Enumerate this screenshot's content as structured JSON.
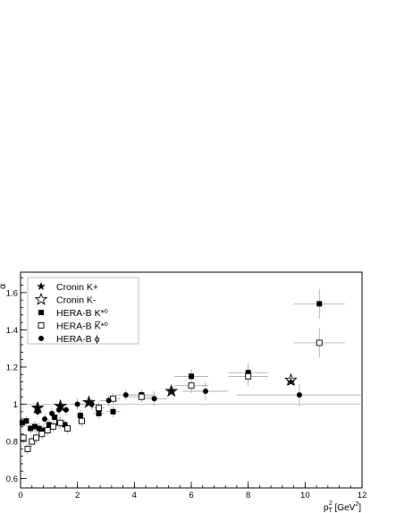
{
  "chart_data": {
    "type": "scatter",
    "xlabel_main": "p",
    "xlabel_sub": "T",
    "xlabel_sup": "2",
    "xlabel_unit": " [GeV",
    "xlabel_unit_sup": "2",
    "xlabel_unit_end": "]",
    "ylabel": "α",
    "xlim": [
      0,
      12
    ],
    "ylim": [
      0.55,
      1.71
    ],
    "xticks": [
      0,
      2,
      4,
      6,
      8,
      10,
      12
    ],
    "yticks": [
      0.6,
      0.8,
      1.0,
      1.2,
      1.4,
      1.6
    ],
    "xtick_labels": [
      "0",
      "2",
      "4",
      "6",
      "8",
      "10",
      "12"
    ],
    "ytick_labels": [
      "0.6",
      "0.8",
      "1",
      "1.2",
      "1.4",
      "1.6"
    ],
    "reference_line": 1.0,
    "legend": [
      {
        "label": "Cronin K+",
        "marker": "star-filled"
      },
      {
        "label": "Cronin K-",
        "marker": "star-open"
      },
      {
        "label": "HERA-B K*⁰",
        "marker": "square-filled"
      },
      {
        "label": "HERA-B K̅*⁰",
        "marker": "square-open"
      },
      {
        "label": "HERA-B ϕ",
        "marker": "circle-filled"
      }
    ],
    "series": [
      {
        "name": "Cronin K+",
        "marker": "star-filled",
        "points": [
          [
            0.6,
            0.98
          ],
          [
            1.4,
            0.99
          ],
          [
            2.4,
            1.01
          ],
          [
            5.3,
            1.07
          ],
          [
            9.5,
            1.12
          ]
        ]
      },
      {
        "name": "Cronin K-",
        "marker": "star-open",
        "points": [
          [
            0.6,
            0.98
          ],
          [
            1.4,
            0.99
          ],
          [
            2.4,
            1.01
          ],
          [
            5.3,
            1.07
          ],
          [
            9.5,
            1.13
          ]
        ]
      },
      {
        "name": "HERA-B K*⁰",
        "marker": "square-filled",
        "points": [
          [
            0.06,
            0.9,
            0.04,
            0.03
          ],
          [
            0.2,
            0.91,
            0.04,
            0.03
          ],
          [
            0.35,
            0.87,
            0.05,
            0.03
          ],
          [
            0.5,
            0.88,
            0.05,
            0.03
          ],
          [
            0.65,
            0.87,
            0.05,
            0.03
          ],
          [
            0.8,
            0.86,
            0.05,
            0.03
          ],
          [
            1.0,
            0.89,
            0.06,
            0.03
          ],
          [
            1.2,
            0.93,
            0.07,
            0.03
          ],
          [
            1.35,
            0.9,
            0.07,
            0.03
          ],
          [
            1.55,
            0.89,
            0.08,
            0.03
          ],
          [
            2.1,
            0.94,
            0.15,
            0.03
          ],
          [
            2.75,
            0.95,
            0.2,
            0.03
          ],
          [
            3.25,
            0.96,
            0.25,
            0.03
          ],
          [
            4.25,
            1.05,
            0.45,
            0.03
          ],
          [
            6.0,
            1.15,
            0.6,
            0.04
          ],
          [
            8.0,
            1.17,
            0.7,
            0.05
          ],
          [
            10.5,
            1.54,
            0.9,
            0.08
          ]
        ]
      },
      {
        "name": "HERA-B K̅*⁰",
        "marker": "square-open",
        "points": [
          [
            0.1,
            0.82,
            0.04,
            0.03
          ],
          [
            0.25,
            0.76,
            0.04,
            0.03
          ],
          [
            0.4,
            0.8,
            0.05,
            0.03
          ],
          [
            0.55,
            0.82,
            0.05,
            0.03
          ],
          [
            0.75,
            0.84,
            0.05,
            0.03
          ],
          [
            0.95,
            0.86,
            0.06,
            0.03
          ],
          [
            1.15,
            0.88,
            0.07,
            0.03
          ],
          [
            1.4,
            0.9,
            0.07,
            0.03
          ],
          [
            1.65,
            0.87,
            0.08,
            0.03
          ],
          [
            2.15,
            0.91,
            0.15,
            0.03
          ],
          [
            2.75,
            0.98,
            0.2,
            0.03
          ],
          [
            3.25,
            1.03,
            0.25,
            0.03
          ],
          [
            4.25,
            1.04,
            0.45,
            0.03
          ],
          [
            6.0,
            1.1,
            0.6,
            0.04
          ],
          [
            8.0,
            1.15,
            0.7,
            0.05
          ],
          [
            10.5,
            1.33,
            0.9,
            0.08
          ]
        ]
      },
      {
        "name": "HERA-B ϕ",
        "marker": "circle-filled",
        "points": [
          [
            0.6,
            0.96,
            0.1,
            0.03
          ],
          [
            0.85,
            0.92,
            0.1,
            0.03
          ],
          [
            1.1,
            0.95,
            0.1,
            0.03
          ],
          [
            1.35,
            0.97,
            0.1,
            0.03
          ],
          [
            1.6,
            0.97,
            0.15,
            0.03
          ],
          [
            2.0,
            1.0,
            0.2,
            0.03
          ],
          [
            2.5,
            1.0,
            0.25,
            0.03
          ],
          [
            3.1,
            1.02,
            0.3,
            0.03
          ],
          [
            3.7,
            1.05,
            0.35,
            0.03
          ],
          [
            4.7,
            1.03,
            0.45,
            0.04
          ],
          [
            6.5,
            1.07,
            0.8,
            0.05
          ],
          [
            9.8,
            1.05,
            2.2,
            0.06
          ]
        ]
      }
    ]
  }
}
